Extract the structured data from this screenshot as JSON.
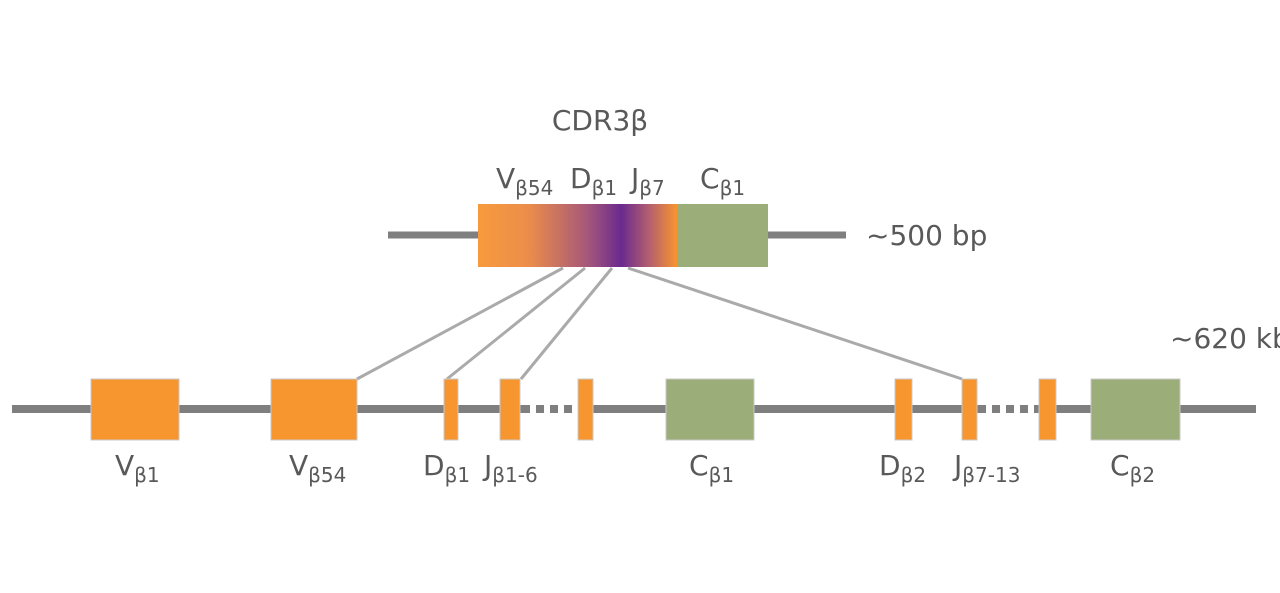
{
  "title": "CDR3β",
  "transcript": {
    "size_label": "~500 bp",
    "labels": [
      {
        "main": "V",
        "sub": "β54"
      },
      {
        "main": "D",
        "sub": "β1"
      },
      {
        "main": "J",
        "sub": "β7"
      },
      {
        "main": "C",
        "sub": "β1"
      }
    ]
  },
  "locus": {
    "size_label": "~620 kb",
    "labels": [
      {
        "main": "V",
        "sub": "β1"
      },
      {
        "main": "V",
        "sub": "β54"
      },
      {
        "main": "D",
        "sub": "β1"
      },
      {
        "main": "J",
        "sub": "β1-6"
      },
      {
        "main": "C",
        "sub": "β1"
      },
      {
        "main": "D",
        "sub": "β2"
      },
      {
        "main": "J",
        "sub": "β7-13"
      },
      {
        "main": "C",
        "sub": "β2"
      }
    ]
  },
  "colors": {
    "segment_vdj": "#f7952f",
    "segment_c": "#9bad78",
    "junction": "#6a2a8f",
    "dna": "#7f7f7f",
    "connector": "#aaaaaa"
  }
}
